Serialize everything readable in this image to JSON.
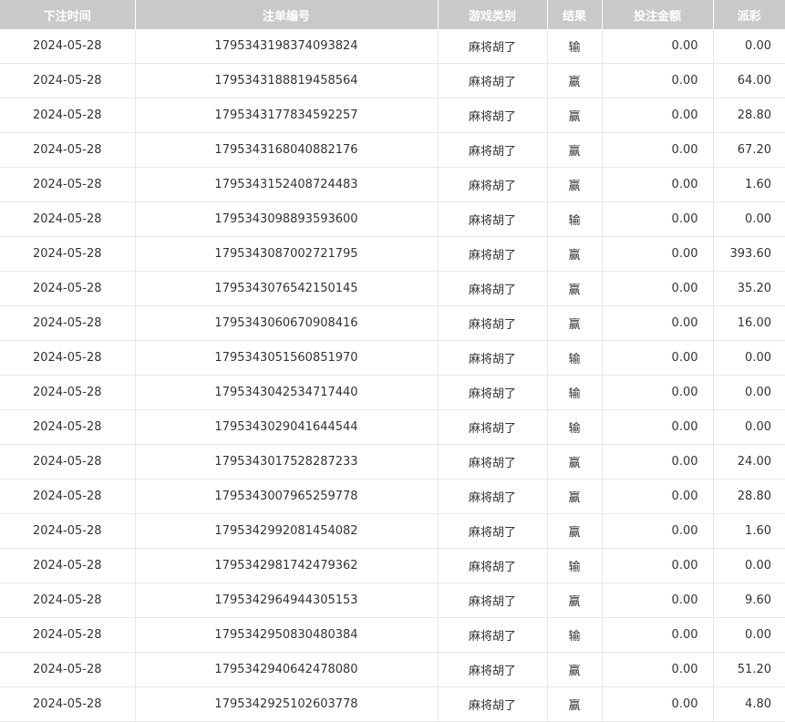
{
  "headers": [
    "下注时间",
    "注单编号",
    "游戏类别",
    "结果",
    "投注金额",
    "派彩"
  ],
  "rows": [
    {
      "date": "2024-05-28",
      "id": "1795343198374093824",
      "game": "麻将胡了",
      "result": "输",
      "bet": "0.00",
      "payout": "0.00"
    },
    {
      "date": "2024-05-28",
      "id": "1795343188819458564",
      "game": "麻将胡了",
      "result": "赢",
      "bet": "0.00",
      "payout": "64.00"
    },
    {
      "date": "2024-05-28",
      "id": "1795343177834592257",
      "game": "麻将胡了",
      "result": "赢",
      "bet": "0.00",
      "payout": "28.80"
    },
    {
      "date": "2024-05-28",
      "id": "1795343168040882176",
      "game": "麻将胡了",
      "result": "赢",
      "bet": "0.00",
      "payout": "67.20"
    },
    {
      "date": "2024-05-28",
      "id": "1795343152408724483",
      "game": "麻将胡了",
      "result": "赢",
      "bet": "0.00",
      "payout": "1.60"
    },
    {
      "date": "2024-05-28",
      "id": "1795343098893593600",
      "game": "麻将胡了",
      "result": "输",
      "bet": "0.00",
      "payout": "0.00"
    },
    {
      "date": "2024-05-28",
      "id": "1795343087002721795",
      "game": "麻将胡了",
      "result": "赢",
      "bet": "0.00",
      "payout": "393.60"
    },
    {
      "date": "2024-05-28",
      "id": "1795343076542150145",
      "game": "麻将胡了",
      "result": "赢",
      "bet": "0.00",
      "payout": "35.20"
    },
    {
      "date": "2024-05-28",
      "id": "1795343060670908416",
      "game": "麻将胡了",
      "result": "赢",
      "bet": "0.00",
      "payout": "16.00"
    },
    {
      "date": "2024-05-28",
      "id": "1795343051560851970",
      "game": "麻将胡了",
      "result": "输",
      "bet": "0.00",
      "payout": "0.00"
    },
    {
      "date": "2024-05-28",
      "id": "1795343042534717440",
      "game": "麻将胡了",
      "result": "输",
      "bet": "0.00",
      "payout": "0.00"
    },
    {
      "date": "2024-05-28",
      "id": "1795343029041644544",
      "game": "麻将胡了",
      "result": "输",
      "bet": "0.00",
      "payout": "0.00"
    },
    {
      "date": "2024-05-28",
      "id": "1795343017528287233",
      "game": "麻将胡了",
      "result": "赢",
      "bet": "0.00",
      "payout": "24.00"
    },
    {
      "date": "2024-05-28",
      "id": "1795343007965259778",
      "game": "麻将胡了",
      "result": "赢",
      "bet": "0.00",
      "payout": "28.80"
    },
    {
      "date": "2024-05-28",
      "id": "1795342992081454082",
      "game": "麻将胡了",
      "result": "赢",
      "bet": "0.00",
      "payout": "1.60"
    },
    {
      "date": "2024-05-28",
      "id": "1795342981742479362",
      "game": "麻将胡了",
      "result": "输",
      "bet": "0.00",
      "payout": "0.00"
    },
    {
      "date": "2024-05-28",
      "id": "1795342964944305153",
      "game": "麻将胡了",
      "result": "赢",
      "bet": "0.00",
      "payout": "9.60"
    },
    {
      "date": "2024-05-28",
      "id": "1795342950830480384",
      "game": "麻将胡了",
      "result": "输",
      "bet": "0.00",
      "payout": "0.00"
    },
    {
      "date": "2024-05-28",
      "id": "1795342940642478080",
      "game": "麻将胡了",
      "result": "赢",
      "bet": "0.00",
      "payout": "51.20"
    },
    {
      "date": "2024-05-28",
      "id": "1795342925102603778",
      "game": "麻将胡了",
      "result": "赢",
      "bet": "0.00",
      "payout": "4.80"
    }
  ]
}
